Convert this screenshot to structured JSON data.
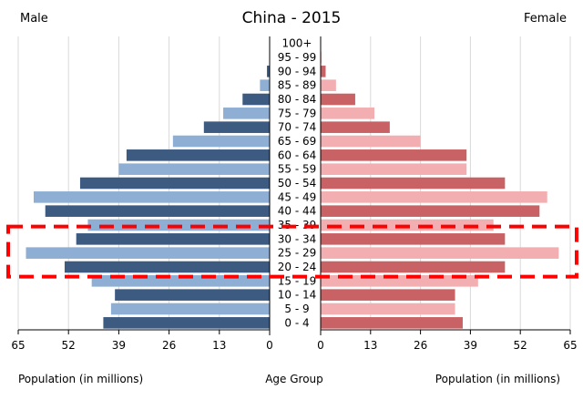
{
  "chart_data": {
    "type": "bar",
    "title": "China - 2015",
    "left_label": "Male",
    "right_label": "Female",
    "xlabel_left": "Population (in millions)",
    "xlabel_center": "Age Group",
    "xlabel_right": "Population (in millions)",
    "xlim": [
      0,
      65
    ],
    "xticks": [
      65,
      52,
      39,
      26,
      13,
      0
    ],
    "xticks_right": [
      0,
      13,
      26,
      39,
      52,
      65
    ],
    "categories": [
      "0 - 4",
      "5 - 9",
      "10 - 14",
      "15 - 19",
      "20 - 24",
      "25 - 29",
      "30 - 34",
      "35 - 39",
      "40 - 44",
      "45 - 49",
      "50 - 54",
      "55 - 59",
      "60 - 64",
      "65 - 69",
      "70 - 74",
      "75 - 79",
      "80 - 84",
      "85 - 89",
      "90 - 94",
      "95 - 99",
      "100+"
    ],
    "series": [
      {
        "name": "Male",
        "values": [
          43,
          41,
          40,
          46,
          53,
          63,
          50,
          47,
          58,
          61,
          49,
          39,
          37,
          25,
          17,
          12,
          7,
          2.5,
          0.7,
          0.1,
          0.0
        ]
      },
      {
        "name": "Female",
        "values": [
          37,
          35,
          35,
          41,
          48,
          62,
          48,
          45,
          57,
          59,
          48,
          38,
          38,
          26,
          18,
          14,
          9,
          4,
          1.3,
          0.2,
          0.0
        ]
      }
    ],
    "colors": {
      "male_dark": "#3d5a80",
      "male_light": "#8eaed3",
      "female_dark": "#c96265",
      "female_light": "#f2aeb0",
      "highlight": "#ff0000"
    },
    "highlight_groups": [
      "20 - 24",
      "25 - 29",
      "30 - 34"
    ]
  }
}
